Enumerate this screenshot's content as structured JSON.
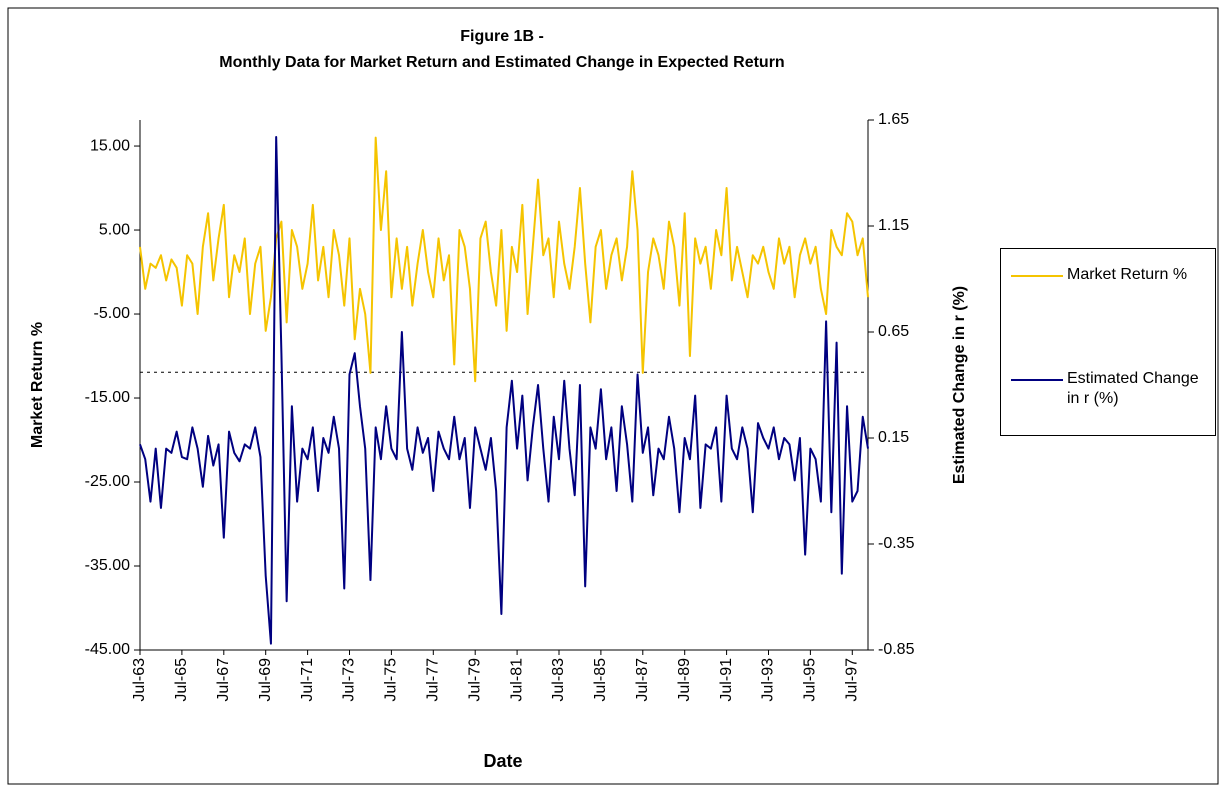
{
  "chart_data": {
    "type": "line",
    "title": "Figure 1B -",
    "subtitle": "Monthly Data for Market Return and Estimated Change in Expected Return",
    "x_label": "Date",
    "y_label": "Market Return %",
    "y2_label": "Estimated Change in r (%)",
    "categories": [
      "Jul-63",
      null,
      null,
      null,
      null,
      null,
      null,
      null,
      "Jul-65",
      null,
      null,
      null,
      null,
      null,
      null,
      null,
      "Jul-67",
      null,
      null,
      null,
      null,
      null,
      null,
      null,
      "Jul-69",
      null,
      null,
      null,
      null,
      null,
      null,
      null,
      "Jul-71",
      null,
      null,
      null,
      null,
      null,
      null,
      null,
      "Jul-73",
      null,
      null,
      null,
      null,
      null,
      null,
      null,
      "Jul-75",
      null,
      null,
      null,
      null,
      null,
      null,
      null,
      "Jul-77",
      null,
      null,
      null,
      null,
      null,
      null,
      null,
      "Jul-79",
      null,
      null,
      null,
      null,
      null,
      null,
      null,
      "Jul-81",
      null,
      null,
      null,
      null,
      null,
      null,
      null,
      "Jul-83",
      null,
      null,
      null,
      null,
      null,
      null,
      null,
      "Jul-85",
      null,
      null,
      null,
      null,
      null,
      null,
      null,
      "Jul-87",
      null,
      null,
      null,
      null,
      null,
      null,
      null,
      "Jul-89",
      null,
      null,
      null,
      null,
      null,
      null,
      null,
      "Jul-91",
      null,
      null,
      null,
      null,
      null,
      null,
      null,
      "Jul-93",
      null,
      null,
      null,
      null,
      null,
      null,
      null,
      "Jul-95",
      null,
      null,
      null,
      null,
      null,
      null,
      null,
      "Jul-97",
      null,
      null,
      null
    ],
    "series": [
      {
        "name": "Market Return %",
        "color": "#f5c400",
        "axis": "y",
        "values": [
          3,
          -2,
          1,
          0.5,
          2,
          -1,
          1.5,
          0.5,
          -4,
          2,
          1,
          -5,
          3,
          7,
          -1,
          4,
          8,
          -3,
          2,
          0,
          4,
          -5,
          1,
          3,
          -7,
          -3,
          4,
          6,
          -6,
          5,
          3,
          -2,
          1,
          8,
          -1,
          3,
          -3,
          5,
          2,
          -4,
          4,
          -8,
          -2,
          -5,
          -12,
          16,
          5,
          12,
          -3,
          4,
          -2,
          3,
          -4,
          1,
          5,
          0,
          -3,
          4,
          -1,
          2,
          -11,
          5,
          3,
          -2,
          -13,
          4,
          6,
          0,
          -4,
          5,
          -7,
          3,
          0,
          8,
          -5,
          3,
          11,
          2,
          4,
          -3,
          6,
          1,
          -2,
          3,
          10,
          1,
          -6,
          3,
          5,
          -2,
          2,
          4,
          -1,
          3,
          12,
          5,
          -12,
          0,
          4,
          2,
          -2,
          6,
          3,
          -4,
          7,
          -10,
          4,
          1,
          3,
          -2,
          5,
          2,
          10,
          -1,
          3,
          0,
          -3,
          2,
          1,
          3,
          0,
          -2,
          4,
          1,
          3,
          -3,
          2,
          4,
          1,
          3,
          -2,
          -5,
          5,
          3,
          2,
          7,
          6,
          2,
          4,
          -3
        ]
      },
      {
        "name": "Estimated Change in r (%)",
        "color": "#000080",
        "axis": "y2",
        "values": [
          0.12,
          0.05,
          -0.15,
          0.1,
          -0.18,
          0.1,
          0.08,
          0.18,
          0.06,
          0.05,
          0.2,
          0.1,
          -0.08,
          0.16,
          0.02,
          0.12,
          -0.32,
          0.18,
          0.08,
          0.04,
          0.12,
          0.1,
          0.2,
          0.06,
          -0.5,
          -0.82,
          1.57,
          0.55,
          -0.62,
          0.3,
          -0.15,
          0.1,
          0.05,
          0.2,
          -0.1,
          0.15,
          0.08,
          0.25,
          0.1,
          -0.56,
          0.45,
          0.55,
          0.3,
          0.1,
          -0.52,
          0.2,
          0.05,
          0.3,
          0.1,
          0.05,
          0.65,
          0.1,
          0.0,
          0.2,
          0.08,
          0.15,
          -0.1,
          0.18,
          0.1,
          0.05,
          0.25,
          0.05,
          0.15,
          -0.18,
          0.2,
          0.1,
          0.0,
          0.15,
          -0.1,
          -0.68,
          0.2,
          0.42,
          0.1,
          0.35,
          -0.05,
          0.2,
          0.4,
          0.1,
          -0.15,
          0.25,
          0.05,
          0.42,
          0.1,
          -0.12,
          0.4,
          -0.55,
          0.2,
          0.1,
          0.38,
          0.05,
          0.2,
          -0.1,
          0.3,
          0.12,
          -0.15,
          0.45,
          0.08,
          0.2,
          -0.12,
          0.1,
          0.05,
          0.25,
          0.1,
          -0.2,
          0.15,
          0.05,
          0.35,
          -0.18,
          0.12,
          0.1,
          0.2,
          -0.15,
          0.35,
          0.1,
          0.05,
          0.2,
          0.1,
          -0.2,
          0.22,
          0.15,
          0.1,
          0.2,
          0.05,
          0.15,
          0.12,
          -0.05,
          0.15,
          -0.4,
          0.1,
          0.05,
          -0.15,
          0.7,
          -0.2,
          0.6,
          -0.49,
          0.3,
          -0.15,
          -0.1,
          0.25,
          0.1
        ]
      }
    ],
    "ylim": [
      -45,
      18.1
    ],
    "yticks": [
      {
        "value": -45,
        "label": "-45.00"
      },
      {
        "value": -35,
        "label": "-35.00"
      },
      {
        "value": -25,
        "label": "-25.00"
      },
      {
        "value": -15,
        "label": "-15.00"
      },
      {
        "value": -5,
        "label": "-5.00"
      },
      {
        "value": 5,
        "label": "5.00"
      },
      {
        "value": 15,
        "label": "15.00"
      }
    ],
    "y2lim": [
      -0.85,
      1.65
    ],
    "y2ticks": [
      -0.85,
      -0.35,
      0.15,
      0.65,
      1.15,
      1.65
    ],
    "reference_line_y2": 0.46,
    "grid": false,
    "legend": "right"
  }
}
